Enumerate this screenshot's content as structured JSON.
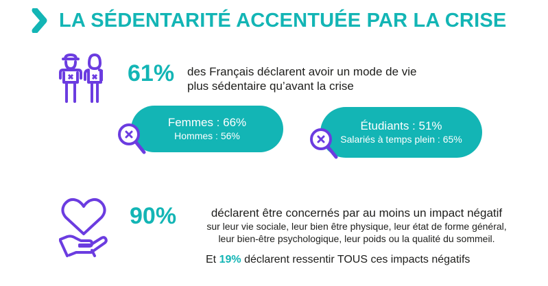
{
  "header": {
    "title": "LA SÉDENTARITÉ ACCENTUÉE PAR LA CRISE"
  },
  "stat1": {
    "percent": "61%",
    "line1": "des Français déclarent avoir un mode de vie",
    "line2": "plus sédentaire qu’avant la crise"
  },
  "pill_gender": {
    "primary": "Femmes : 66%",
    "secondary": "Hommes : 56%"
  },
  "pill_status": {
    "primary": "Étudiants : 51%",
    "secondary": "Salariés à temps plein : 65%"
  },
  "stat2": {
    "percent": "90%",
    "line1": "déclarent être concernés par au moins un impact négatif",
    "line2": "sur leur vie sociale, leur bien être physique, leur état de forme général,",
    "line3": "leur bien-être psychologique, leur poids ou la qualité du sommeil."
  },
  "note": {
    "prefix": "Et",
    "highlight": "19%",
    "suffix": "déclarent ressentir TOUS ces impacts négatifs"
  },
  "colors": {
    "accent": "#13b5b5",
    "icon": "#6b3ce0",
    "text": "#1d1d1b"
  },
  "icons": [
    "chevron-right-icon",
    "couple-icon",
    "magnifier-icon",
    "heart-hand-icon"
  ]
}
